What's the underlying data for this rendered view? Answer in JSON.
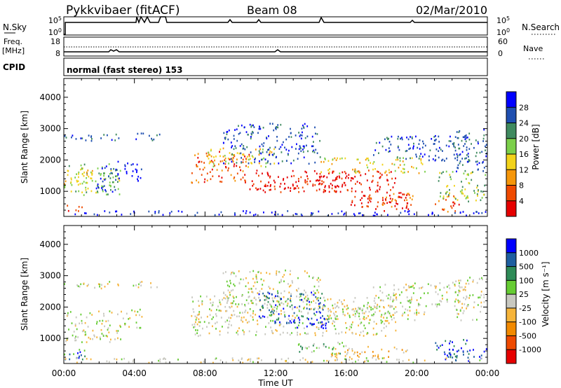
{
  "header": {
    "station": "Pykkvibaer (fitACF)",
    "beam": "Beam 08",
    "date": "02/Mar/2010"
  },
  "strip_panels": {
    "nsky_label": "N.Sky",
    "nsearch_label": "N.Search",
    "nsky_ticks": [
      "10^5",
      "10^0"
    ],
    "nsearch_ticks": [
      "10^5",
      "10^0"
    ],
    "freq_label": "Freq.",
    "freq_unit": "[MHz]",
    "freq_ticks": [
      "18",
      "8"
    ],
    "nave_label": "Nave",
    "nave_ticks": [
      "60",
      "0"
    ],
    "cpid_label": "CPID",
    "cpid_text": "normal (fast stereo) 153"
  },
  "chart_data": [
    {
      "type": "heatmap",
      "name": "power",
      "ylabel": "Slant Range [km]",
      "yticks": [
        1000,
        2000,
        3000,
        4000
      ],
      "ylim": [
        200,
        4600
      ],
      "xlim_hours": [
        0,
        24
      ],
      "colorbar_label": "Power [dB]",
      "colorbar_ticks": [
        "4",
        "8",
        "12",
        "16",
        "20",
        "24",
        "28"
      ],
      "colors": [
        "#0000ff",
        "#1f4fb0",
        "#3f8a5f",
        "#7bcf4a",
        "#f2d21a",
        "#f5960a",
        "#ef4a00",
        "#e60000"
      ],
      "blobs": [
        {
          "t0": 0.0,
          "t1": 1.0,
          "r0": 350,
          "r1": 600,
          "level": 6
        },
        {
          "t0": 0.0,
          "t1": 3.2,
          "r0": 900,
          "r1": 1900,
          "level": 3
        },
        {
          "t0": 0.0,
          "t1": 1.6,
          "r0": 1200,
          "r1": 1800,
          "level": 4
        },
        {
          "t0": 1.8,
          "t1": 3.0,
          "r0": 1000,
          "r1": 1900,
          "level": 1
        },
        {
          "t0": 0.0,
          "t1": 3.2,
          "r0": 2600,
          "r1": 2850,
          "level": 1
        },
        {
          "t0": 3.0,
          "t1": 4.4,
          "r0": 1350,
          "r1": 2000,
          "level": 0
        },
        {
          "t0": 3.8,
          "t1": 5.4,
          "r0": 2650,
          "r1": 2900,
          "level": 1
        },
        {
          "t0": 7.2,
          "t1": 10.5,
          "r0": 1300,
          "r1": 2300,
          "level": 6
        },
        {
          "t0": 8.0,
          "t1": 12.0,
          "r0": 1800,
          "r1": 2400,
          "level": 4
        },
        {
          "t0": 9.0,
          "t1": 14.5,
          "r0": 1900,
          "r1": 3200,
          "level": 1
        },
        {
          "t0": 10.5,
          "t1": 18.8,
          "r0": 1000,
          "r1": 1700,
          "level": 7
        },
        {
          "t0": 12.0,
          "t1": 16.5,
          "r0": 1000,
          "r1": 1500,
          "level": 7
        },
        {
          "t0": 14.5,
          "t1": 20.5,
          "r0": 1600,
          "r1": 2100,
          "level": 4
        },
        {
          "t0": 16.0,
          "t1": 19.5,
          "r0": 400,
          "r1": 900,
          "level": 7
        },
        {
          "t0": 17.0,
          "t1": 19.8,
          "r0": 500,
          "r1": 1000,
          "level": 6
        },
        {
          "t0": 17.5,
          "t1": 23.0,
          "r0": 2000,
          "r1": 2800,
          "level": 1
        },
        {
          "t0": 21.0,
          "t1": 22.4,
          "r0": 350,
          "r1": 900,
          "level": 6
        },
        {
          "t0": 21.2,
          "t1": 24.0,
          "r0": 700,
          "r1": 1700,
          "level": 3
        },
        {
          "t0": 22.0,
          "t1": 24.0,
          "r0": 1600,
          "r1": 3000,
          "level": 1
        },
        {
          "t0": 0.0,
          "t1": 24.0,
          "r0": 250,
          "r1": 400,
          "level": 0
        }
      ]
    },
    {
      "type": "heatmap",
      "name": "velocity",
      "ylabel": "Slant Range [km]",
      "yticks": [
        1000,
        2000,
        3000,
        4000
      ],
      "ylim": [
        200,
        4600
      ],
      "xlim_hours": [
        0,
        24
      ],
      "xticks": [
        "00:00",
        "04:00",
        "08:00",
        "12:00",
        "16:00",
        "20:00",
        "00:00"
      ],
      "xlabel": "Time UT",
      "colorbar_label": "Velocity [m s⁻¹]",
      "colorbar_ticks": [
        "1000",
        "500",
        "100",
        "25",
        "-25",
        "-100",
        "-500",
        "-1000"
      ],
      "colors": [
        "#0000ff",
        "#1f5fa0",
        "#2e8b57",
        "#66cc33",
        "#c8c8c0",
        "#f6b43a",
        "#f28a00",
        "#ef4a00",
        "#e60000"
      ],
      "blobs": [
        {
          "t0": 0.0,
          "t1": 3.2,
          "r0": 900,
          "r1": 1900,
          "level": 4
        },
        {
          "t0": 0.0,
          "t1": 1.2,
          "r0": 350,
          "r1": 700,
          "level": 2
        },
        {
          "t0": 0.2,
          "t1": 1.0,
          "r0": 400,
          "r1": 600,
          "level": 0
        },
        {
          "t0": 0.0,
          "t1": 3.2,
          "r0": 2600,
          "r1": 2850,
          "level": 4
        },
        {
          "t0": 3.0,
          "t1": 4.4,
          "r0": 1350,
          "r1": 2000,
          "level": 4
        },
        {
          "t0": 3.8,
          "t1": 5.4,
          "r0": 2650,
          "r1": 2900,
          "level": 4
        },
        {
          "t0": 7.2,
          "t1": 18.8,
          "r0": 1100,
          "r1": 2400,
          "level": 4
        },
        {
          "t0": 9.0,
          "t1": 14.5,
          "r0": 1900,
          "r1": 3200,
          "level": 4
        },
        {
          "t0": 11.0,
          "t1": 14.8,
          "r0": 1500,
          "r1": 2500,
          "level": 1
        },
        {
          "t0": 12.0,
          "t1": 15.0,
          "r0": 1350,
          "r1": 1700,
          "level": 0
        },
        {
          "t0": 14.5,
          "t1": 20.5,
          "r0": 1600,
          "r1": 2100,
          "level": 4
        },
        {
          "t0": 13.0,
          "t1": 16.0,
          "r0": 500,
          "r1": 900,
          "level": 3
        },
        {
          "t0": 15.0,
          "t1": 19.5,
          "r0": 400,
          "r1": 800,
          "level": 5
        },
        {
          "t0": 17.5,
          "t1": 23.0,
          "r0": 2000,
          "r1": 2800,
          "level": 4
        },
        {
          "t0": 21.0,
          "t1": 23.0,
          "r0": 400,
          "r1": 1000,
          "level": 1
        },
        {
          "t0": 21.5,
          "t1": 24.0,
          "r0": 300,
          "r1": 700,
          "level": 0
        },
        {
          "t0": 22.0,
          "t1": 24.0,
          "r0": 1600,
          "r1": 3000,
          "level": 4
        },
        {
          "t0": 0.0,
          "t1": 24.0,
          "r0": 250,
          "r1": 400,
          "level": 4
        }
      ]
    }
  ]
}
